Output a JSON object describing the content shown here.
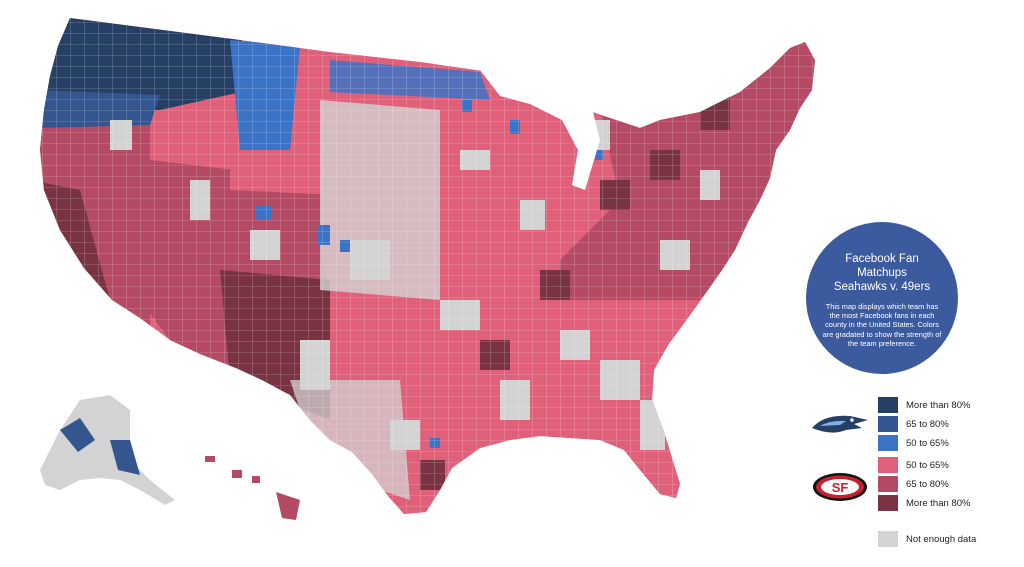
{
  "colors": {
    "sea_80": "#253f65",
    "sea_65": "#34568f",
    "sea_50": "#3b73c7",
    "sf_50": "#e0607a",
    "sf_65": "#b44a64",
    "sf_80": "#7a3342",
    "no_data": "#d3d3d3",
    "border": "#ffffff"
  },
  "info": {
    "title": "Facebook Fan Matchups",
    "subtitle": "Seahawks v. 49ers",
    "description": "This map displays which team has the most Facebook fans in each county in the United States. Colors are gradated to show the strength of the team preference."
  },
  "legend": {
    "items": [
      {
        "label": "More than 80%",
        "color": "#253f65"
      },
      {
        "label": "65 to 80%",
        "color": "#34568f"
      },
      {
        "label": "50 to 65%",
        "color": "#3b73c7"
      },
      {
        "label": "50 to 65%",
        "color": "#e0607a"
      },
      {
        "label": "65 to 80%",
        "color": "#b44a64"
      },
      {
        "label": "More than 80%",
        "color": "#7a3342"
      },
      {
        "label": "Not enough data",
        "color": "#d3d3d3"
      }
    ],
    "logos": [
      {
        "name": "seahawks-logo-icon",
        "team": "Seahawks"
      },
      {
        "name": "49ers-logo-icon",
        "team": "49ers"
      }
    ],
    "logo_text": "SF"
  },
  "map": {
    "regions": [
      {
        "name": "washington",
        "fill": "#253f65"
      },
      {
        "name": "oregon",
        "fill": "#b44a64"
      },
      {
        "name": "california",
        "fill": "#b44a64"
      },
      {
        "name": "idaho-north",
        "fill": "#3b73c7"
      },
      {
        "name": "montana",
        "fill": "#e0607a"
      },
      {
        "name": "interior-west",
        "fill": "#b44a64"
      },
      {
        "name": "plains",
        "fill": "#d3d3d3"
      },
      {
        "name": "midwest",
        "fill": "#e0607a"
      },
      {
        "name": "east",
        "fill": "#b44a64"
      },
      {
        "name": "south",
        "fill": "#e0607a"
      },
      {
        "name": "texas",
        "fill": "#d3d3d3"
      },
      {
        "name": "florida",
        "fill": "#e0607a"
      },
      {
        "name": "alaska",
        "fill": "#d3d3d3"
      },
      {
        "name": "hawaii",
        "fill": "#b44a64"
      }
    ]
  }
}
